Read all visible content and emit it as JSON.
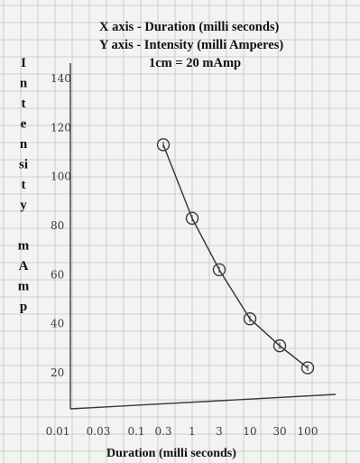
{
  "header": {
    "line1": "X axis - Duration (milli seconds)",
    "line2": "Y axis - Intensity (milli Amperes)",
    "line3": "1cm = 20 mAmp"
  },
  "colors": {
    "paper": "#f3f4f1",
    "grid": "#b9c9c0",
    "ink": "#3a3a3a"
  },
  "chart_data": {
    "type": "line",
    "title": "",
    "xlabel": "Duration (milli seconds)",
    "ylabel_letters": [
      "I",
      "n",
      "t",
      "e",
      "n",
      "si",
      "t",
      "y",
      "",
      "m",
      "A",
      "m",
      "p"
    ],
    "x_scale": "log",
    "x_ticks": [
      "0.01",
      "0.03",
      "0.1",
      "0.3",
      "1",
      "3",
      "10",
      "30",
      "100"
    ],
    "x_tick_values": [
      0.01,
      0.03,
      0.1,
      0.3,
      1,
      3,
      10,
      30,
      100
    ],
    "y_ticks": [
      20,
      40,
      60,
      80,
      100,
      120,
      140
    ],
    "ylim": [
      0,
      150
    ],
    "grid": true,
    "markers": "circle",
    "series": [
      {
        "x": [
          0.3,
          1,
          3,
          10,
          30,
          100
        ],
        "values": [
          113,
          83,
          62,
          42,
          31,
          22
        ]
      }
    ]
  }
}
